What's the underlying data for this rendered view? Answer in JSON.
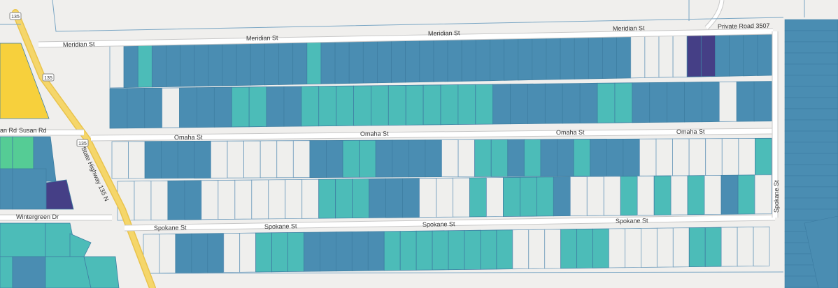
{
  "map": {
    "streets": {
      "meridian": "Meridian St",
      "private_road": "Private Road 3507",
      "omaha": "Omaha St",
      "spokane": "Spokane St",
      "susan_rd": "Susan Rd",
      "susan_partial": "an Rd",
      "wintergreen": "Wintergreen Dr",
      "spokane_vertical": "Spokane St",
      "highway": "State Highway 135 N"
    },
    "route_shields": [
      "135",
      "135",
      "135"
    ],
    "colors": {
      "background": "#f0efed",
      "road": "#ffffff",
      "parcel_empty": "#efefed",
      "parcel_outline": "#5a8fb0",
      "highway": "#f5d66a",
      "class_dark_navy": "#453f86",
      "class_steel_blue": "#4a8db2",
      "class_teal": "#4cbcb8",
      "class_green": "#55cc95",
      "class_yellow": "#f7d03c"
    },
    "legend_classes": [
      "dark_navy",
      "steel_blue",
      "teal",
      "green",
      "yellow",
      "empty"
    ]
  }
}
